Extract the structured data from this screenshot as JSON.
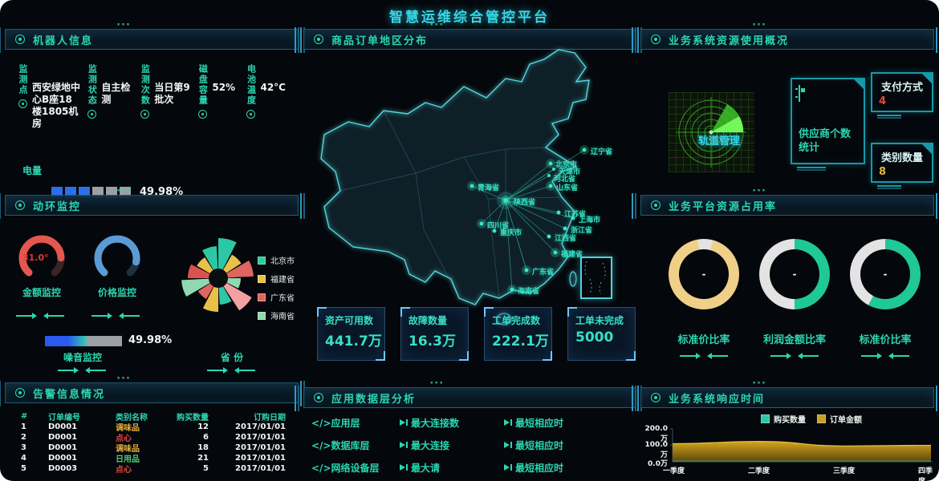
{
  "app_title": "智慧运维综合管控平台",
  "panels": {
    "robot": {
      "title": "机器人信息",
      "fields": [
        {
          "label": "监测点",
          "value": "西安绿地中心B座18楼1805机房"
        },
        {
          "label": "监测状态",
          "value": "自主检测"
        },
        {
          "label": "监测次数",
          "value": "当日第9批次"
        },
        {
          "label": "磁盘容量",
          "value": "52%"
        },
        {
          "label": "电池温度",
          "value": "42°C"
        }
      ],
      "battery": {
        "label": "电量",
        "percent": "49.98%",
        "segments_total": 6,
        "segments_filled": 3,
        "filled_color": "#2e6fe8",
        "empty_color": "#9aa0a6"
      }
    },
    "env": {
      "title": "动环监控",
      "gauges": [
        {
          "label": "金额监控",
          "value": "31.0°",
          "color": "#e4574e"
        },
        {
          "label": "价格监控",
          "value": "",
          "color": "#5b9bd5"
        }
      ],
      "noise": {
        "label": "噪音监控",
        "percent": "49.98%"
      },
      "province": {
        "label": "省 份"
      },
      "rose": {
        "legend": [
          {
            "label": "北京市",
            "color": "#2ec7a6"
          },
          {
            "label": "福建省",
            "color": "#e8c04a"
          },
          {
            "label": "广东省",
            "color": "#e06560"
          },
          {
            "label": "海南省",
            "color": "#8fd8b0"
          }
        ],
        "petals": [
          {
            "r": 50,
            "color": "#2ec7a6"
          },
          {
            "r": 34,
            "color": "#e8c04a"
          },
          {
            "r": 44,
            "color": "#e06560"
          },
          {
            "r": 28,
            "color": "#8fd8b0"
          },
          {
            "r": 48,
            "color": "#f2a0a0"
          },
          {
            "r": 33,
            "color": "#2ec7a6"
          },
          {
            "r": 42,
            "color": "#e8c04a"
          },
          {
            "r": 30,
            "color": "#e06560"
          },
          {
            "r": 46,
            "color": "#8fd8b0"
          },
          {
            "r": 38,
            "color": "#d9534f"
          },
          {
            "r": 31,
            "color": "#e8c04a"
          },
          {
            "r": 40,
            "color": "#2ec7a6"
          }
        ]
      }
    },
    "alarm": {
      "title": "告警信息情况",
      "headers": [
        "#",
        "订单编号",
        "类别名称",
        "购买数量",
        "订购日期"
      ],
      "rows": [
        {
          "idx": "1",
          "order_no": "D0001",
          "category": "调味品",
          "category_color": "#e8b33c",
          "qty": "12",
          "date": "2017/01/01"
        },
        {
          "idx": "2",
          "order_no": "D0001",
          "category": "点心",
          "category_color": "#e04b43",
          "qty": "6",
          "date": "2017/01/01"
        },
        {
          "idx": "3",
          "order_no": "D0001",
          "category": "调味品",
          "category_color": "#e8b33c",
          "qty": "18",
          "date": "2017/01/01"
        },
        {
          "idx": "4",
          "order_no": "D0001",
          "category": "日用品",
          "category_color": "#4fcf7c",
          "qty": "21",
          "date": "2017/01/01"
        },
        {
          "idx": "5",
          "order_no": "D0003",
          "category": "点心",
          "category_color": "#e04b43",
          "qty": "5",
          "date": "2017/01/01"
        }
      ]
    },
    "map": {
      "title": "商品订单地区分布",
      "labels": [
        "辽宁省",
        "北京市",
        "天津市",
        "河北省",
        "山东省",
        "青海省",
        "陕西省",
        "四川省",
        "重庆市",
        "江苏省",
        "上海市",
        "浙江省",
        "江西省",
        "福建省",
        "广东省",
        "海南省"
      ],
      "stats": [
        {
          "label": "资产可用数",
          "value": "441.7万"
        },
        {
          "label": "故障数量",
          "value": "16.3万"
        },
        {
          "label": "工单完成数",
          "value": "222.1万"
        },
        {
          "label": "工单未完成",
          "value": "5000"
        }
      ]
    },
    "applayer": {
      "title": "应用数据层分析",
      "rows": [
        {
          "layer": "</>应用层",
          "metric1": "最大连接数",
          "metric2": "最短相应时"
        },
        {
          "layer": "</>数据库层",
          "metric1": "最大连接",
          "metric2": "最短相应时"
        },
        {
          "layer": "</>网络设备层",
          "metric1": "最大请",
          "metric2": "最短相应时"
        }
      ]
    },
    "resource": {
      "title": "业务系统资源使用概况",
      "radar_label": "轨道管理",
      "supplier_card": {
        "label": "供应商个数统计"
      },
      "pay_card": {
        "label": "支付方式",
        "value": "4",
        "value_color": "#e34b3c"
      },
      "category_card": {
        "label": "类别数量",
        "value": "8",
        "value_color": "#e8b33c"
      }
    },
    "occupy": {
      "title": "业务平台资源占用率",
      "donuts": [
        {
          "label": "标准价比率",
          "center": "-",
          "pct": 93,
          "from": 15,
          "color": "#f0d088",
          "rest_color": "#e3e3e3"
        },
        {
          "label": "利润金额比率",
          "center": "-",
          "pct": 50,
          "from": 0,
          "color": "#1fc896",
          "rest_color": "#e3e3e3"
        },
        {
          "label": "标准价比率",
          "center": "-",
          "pct": 58,
          "from": 0,
          "color": "#1fc896",
          "rest_color": "#e3e3e3"
        }
      ]
    },
    "response": {
      "title": "业务系统响应时间",
      "legend": [
        {
          "label": "购买数量",
          "color": "#2ec7a6"
        },
        {
          "label": "订单金额",
          "color": "#c8a028"
        }
      ],
      "y_ticks": [
        "200.0万",
        "100.0万",
        "0.0万"
      ],
      "x_ticks": [
        "一季度",
        "二季度",
        "三季度",
        "四季度"
      ]
    }
  },
  "chart_data": [
    {
      "type": "bar",
      "subtype": "segmented-progress",
      "title": "电量",
      "value_pct": 49.98
    },
    {
      "type": "pie",
      "subtype": "gauge",
      "title": "金额监控",
      "value": "31.0°",
      "color": "#e4574e"
    },
    {
      "type": "pie",
      "subtype": "gauge",
      "title": "价格监控",
      "color": "#5b9bd5"
    },
    {
      "type": "pie",
      "subtype": "nightingale-rose",
      "legend": [
        "北京市",
        "福建省",
        "广东省",
        "海南省"
      ],
      "colors": [
        "#2ec7a6",
        "#e8c04a",
        "#e06560",
        "#8fd8b0"
      ]
    },
    {
      "type": "bar",
      "subtype": "gradient-progress",
      "title": "噪音监控",
      "value_pct": 49.98
    },
    {
      "type": "pie",
      "subtype": "donut",
      "title": "标准价比率",
      "value_pct": 93,
      "center_text": "-"
    },
    {
      "type": "pie",
      "subtype": "donut",
      "title": "利润金额比率",
      "value_pct": 50,
      "center_text": "-"
    },
    {
      "type": "pie",
      "subtype": "donut",
      "title": "标准价比率",
      "value_pct": 58,
      "center_text": "-"
    },
    {
      "type": "area",
      "title": "业务系统响应时间",
      "categories": [
        "一季度",
        "二季度",
        "三季度",
        "四季度"
      ],
      "series": [
        {
          "name": "订单金额",
          "values": [
            110,
            124,
            96,
            100
          ],
          "unit": "万",
          "color": "#c8a028"
        },
        {
          "name": "购买数量",
          "values": [
            3,
            3,
            3,
            3
          ],
          "unit": "万",
          "color": "#2ec7a6"
        }
      ],
      "ylim": [
        0,
        200
      ],
      "y_ticks": [
        "0.0万",
        "100.0万",
        "200.0万"
      ],
      "legend_position": "top"
    }
  ]
}
